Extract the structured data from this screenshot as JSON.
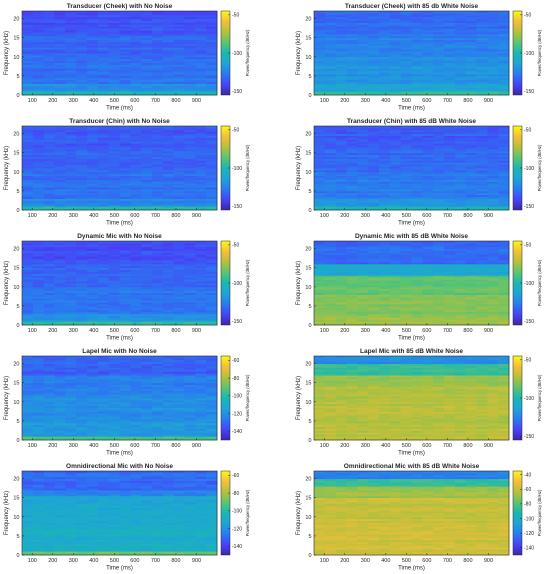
{
  "chart_data": [
    {
      "type": "heatmap",
      "title": "Transducer (Cheek) with No Noise",
      "xlabel": "Time (ms)",
      "ylabel": "Frequency (kHz)",
      "colorbar_label": "Power/frequency (dB/Hz)",
      "x_ticks": [
        100,
        200,
        300,
        400,
        500,
        600,
        700,
        800,
        900
      ],
      "y_ticks": [
        0,
        5,
        10,
        15,
        20
      ],
      "xlim": [
        50,
        1000
      ],
      "ylim": [
        0,
        22
      ],
      "clim": [
        -155,
        -45
      ],
      "colorbar_ticks": [
        -50,
        -100,
        -150
      ],
      "bands": [
        {
          "from": 0,
          "to": 0.8,
          "db": -100
        },
        {
          "from": 0.8,
          "to": 3,
          "db": -122
        },
        {
          "from": 3,
          "to": 10,
          "db": -130
        },
        {
          "from": 10,
          "to": 16,
          "db": -133
        },
        {
          "from": 16,
          "to": 22,
          "db": -137
        }
      ]
    },
    {
      "type": "heatmap",
      "title": "Transducer (Cheek) with 85 db White Noise",
      "xlabel": "Time (ms)",
      "ylabel": "Frequency (kHz)",
      "colorbar_label": "Power/frequency (dB/Hz)",
      "x_ticks": [
        100,
        200,
        300,
        400,
        500,
        600,
        700,
        800,
        900
      ],
      "y_ticks": [
        0,
        5,
        10,
        15,
        20
      ],
      "xlim": [
        50,
        1000
      ],
      "ylim": [
        0,
        22
      ],
      "clim": [
        -155,
        -45
      ],
      "colorbar_ticks": [
        -50,
        -100,
        -150
      ],
      "bands": [
        {
          "from": 0,
          "to": 0.8,
          "db": -95
        },
        {
          "from": 0.8,
          "to": 3,
          "db": -112
        },
        {
          "from": 3,
          "to": 10,
          "db": -120
        },
        {
          "from": 10,
          "to": 16,
          "db": -126
        },
        {
          "from": 16,
          "to": 22,
          "db": -132
        }
      ]
    },
    {
      "type": "heatmap",
      "title": "Transducer (Chin) with No Noise",
      "xlabel": "Time (ms)",
      "ylabel": "Frequency (kHz)",
      "colorbar_label": "Power/frequency (dB/Hz)",
      "x_ticks": [
        100,
        200,
        300,
        400,
        500,
        600,
        700,
        800,
        900
      ],
      "y_ticks": [
        0,
        5,
        10,
        15,
        20
      ],
      "xlim": [
        50,
        1000
      ],
      "ylim": [
        0,
        22
      ],
      "clim": [
        -155,
        -45
      ],
      "colorbar_ticks": [
        -50,
        -100,
        -150
      ],
      "bands": [
        {
          "from": 0,
          "to": 0.8,
          "db": -100
        },
        {
          "from": 0.8,
          "to": 3,
          "db": -124
        },
        {
          "from": 3,
          "to": 10,
          "db": -130
        },
        {
          "from": 10,
          "to": 16,
          "db": -133
        },
        {
          "from": 16,
          "to": 22,
          "db": -136
        }
      ]
    },
    {
      "type": "heatmap",
      "title": "Transducer (Chin) with 85 dB White Noise",
      "xlabel": "Time (ms)",
      "ylabel": "Frequency (kHz)",
      "colorbar_label": "Power/frequency (dB/Hz)",
      "x_ticks": [
        100,
        200,
        300,
        400,
        500,
        600,
        700,
        800,
        900
      ],
      "y_ticks": [
        0,
        5,
        10,
        15,
        20
      ],
      "xlim": [
        50,
        1000
      ],
      "ylim": [
        0,
        22
      ],
      "clim": [
        -155,
        -45
      ],
      "colorbar_ticks": [
        -50,
        -100,
        -150
      ],
      "bands": [
        {
          "from": 0,
          "to": 0.8,
          "db": -100
        },
        {
          "from": 0.8,
          "to": 3,
          "db": -120
        },
        {
          "from": 3,
          "to": 10,
          "db": -127
        },
        {
          "from": 10,
          "to": 16,
          "db": -131
        },
        {
          "from": 16,
          "to": 22,
          "db": -135
        }
      ]
    },
    {
      "type": "heatmap",
      "title": "Dynamic Mic with No Noise",
      "xlabel": "Time (ms)",
      "ylabel": "Frequency (kHz)",
      "colorbar_label": "Power/frequency (dB/Hz)",
      "x_ticks": [
        100,
        200,
        300,
        400,
        500,
        600,
        700,
        800,
        900
      ],
      "y_ticks": [
        0,
        5,
        10,
        15,
        20
      ],
      "xlim": [
        50,
        1000
      ],
      "ylim": [
        0,
        22
      ],
      "clim": [
        -155,
        -45
      ],
      "colorbar_ticks": [
        -50,
        -100,
        -150
      ],
      "bands": [
        {
          "from": 0,
          "to": 0.8,
          "db": -95
        },
        {
          "from": 0.8,
          "to": 3,
          "db": -120
        },
        {
          "from": 3,
          "to": 10,
          "db": -128
        },
        {
          "from": 10,
          "to": 16,
          "db": -133
        },
        {
          "from": 16,
          "to": 22,
          "db": -138
        }
      ]
    },
    {
      "type": "heatmap",
      "title": "Dynamic Mic with 85 dB White Noise",
      "xlabel": "Time (ms)",
      "ylabel": "Frequency (kHz)",
      "colorbar_label": "Power/frequency (dB/Hz)",
      "x_ticks": [
        100,
        200,
        300,
        400,
        500,
        600,
        700,
        800,
        900
      ],
      "y_ticks": [
        0,
        5,
        10,
        15,
        20
      ],
      "xlim": [
        50,
        1000
      ],
      "ylim": [
        0,
        22
      ],
      "clim": [
        -155,
        -45
      ],
      "colorbar_ticks": [
        -50,
        -100,
        -150
      ],
      "bands": [
        {
          "from": 0,
          "to": 2,
          "db": -78
        },
        {
          "from": 2,
          "to": 8,
          "db": -80
        },
        {
          "from": 8,
          "to": 13,
          "db": -86
        },
        {
          "from": 13,
          "to": 16,
          "db": -112
        },
        {
          "from": 16,
          "to": 22,
          "db": -132
        }
      ]
    },
    {
      "type": "heatmap",
      "title": "Lapel Mic with No Noise",
      "xlabel": "Time (ms)",
      "ylabel": "Frequency (kHz)",
      "colorbar_label": "Power/frequency (dB/Hz)",
      "x_ticks": [
        100,
        200,
        300,
        400,
        500,
        600,
        700,
        800,
        900
      ],
      "y_ticks": [
        0,
        5,
        10,
        15,
        20
      ],
      "xlim": [
        50,
        1000
      ],
      "ylim": [
        0,
        22
      ],
      "clim": [
        -150,
        -55
      ],
      "colorbar_ticks": [
        -60,
        -80,
        -100,
        -120,
        -140
      ],
      "bands": [
        {
          "from": 0,
          "to": 1,
          "db": -95
        },
        {
          "from": 1,
          "to": 5,
          "db": -118
        },
        {
          "from": 5,
          "to": 12,
          "db": -122
        },
        {
          "from": 12,
          "to": 17,
          "db": -126
        },
        {
          "from": 17,
          "to": 22,
          "db": -132
        }
      ]
    },
    {
      "type": "heatmap",
      "title": "Lapel Mic with 85 dB White Noise",
      "xlabel": "Time (ms)",
      "ylabel": "Frequency (kHz)",
      "colorbar_label": "Power/frequency (dB/Hz)",
      "x_ticks": [
        100,
        200,
        300,
        400,
        500,
        600,
        700,
        800,
        900
      ],
      "y_ticks": [
        0,
        5,
        10,
        15,
        20
      ],
      "xlim": [
        50,
        1000
      ],
      "ylim": [
        0,
        22
      ],
      "clim": [
        -155,
        -45
      ],
      "colorbar_ticks": [
        -50,
        -100,
        -150
      ],
      "bands": [
        {
          "from": 0,
          "to": 8,
          "db": -72
        },
        {
          "from": 8,
          "to": 14,
          "db": -72
        },
        {
          "from": 14,
          "to": 17,
          "db": -78
        },
        {
          "from": 17,
          "to": 20,
          "db": -95
        },
        {
          "from": 20,
          "to": 22,
          "db": -122
        }
      ]
    },
    {
      "type": "heatmap",
      "title": "Omnidirectional Mic with No Noise",
      "xlabel": "Time (ms)",
      "ylabel": "Frequency (kHz)",
      "colorbar_label": "Power/frequency (dB/Hz)",
      "x_ticks": [
        100,
        200,
        300,
        400,
        500,
        600,
        700,
        800,
        900
      ],
      "y_ticks": [
        0,
        5,
        10,
        15,
        20
      ],
      "xlim": [
        50,
        1000
      ],
      "ylim": [
        0,
        22
      ],
      "clim": [
        -150,
        -55
      ],
      "colorbar_ticks": [
        -60,
        -80,
        -100,
        -120,
        -140
      ],
      "bands": [
        {
          "from": 0,
          "to": 1,
          "db": -88
        },
        {
          "from": 1,
          "to": 8,
          "db": -110
        },
        {
          "from": 8,
          "to": 15.5,
          "db": -112
        },
        {
          "from": 15.5,
          "to": 17,
          "db": -122
        },
        {
          "from": 17,
          "to": 22,
          "db": -130
        }
      ]
    },
    {
      "type": "heatmap",
      "title": "Omnidirectional Mic with 85 dB White Noise",
      "xlabel": "Time (ms)",
      "ylabel": "Frequency (kHz)",
      "colorbar_label": "Power/frequency (dB/Hz)",
      "x_ticks": [
        100,
        200,
        300,
        400,
        500,
        600,
        700,
        800,
        900
      ],
      "y_ticks": [
        0,
        5,
        10,
        15,
        20
      ],
      "xlim": [
        50,
        1000
      ],
      "ylim": [
        0,
        22
      ],
      "clim": [
        -150,
        -35
      ],
      "colorbar_ticks": [
        -40,
        -60,
        -80,
        -100,
        -120,
        -140
      ],
      "bands": [
        {
          "from": 0,
          "to": 8,
          "db": -58
        },
        {
          "from": 8,
          "to": 15,
          "db": -60
        },
        {
          "from": 15,
          "to": 18,
          "db": -68
        },
        {
          "from": 18,
          "to": 20,
          "db": -85
        },
        {
          "from": 20,
          "to": 22,
          "db": -118
        }
      ]
    }
  ]
}
